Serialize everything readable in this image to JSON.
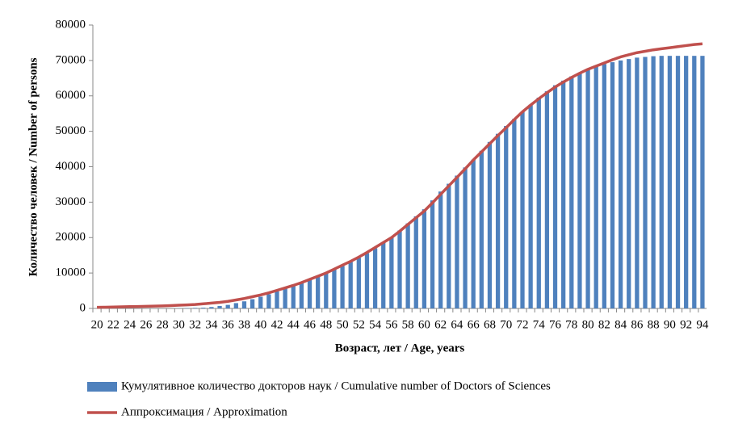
{
  "chart_data": {
    "type": "bar",
    "x_label": "Возраст, лет / Age, years",
    "y_label": "Количество человек / Number of persons",
    "categories": [
      "20",
      null,
      "22",
      null,
      "24",
      null,
      "26",
      null,
      "28",
      null,
      "30",
      null,
      "32",
      null,
      "34",
      null,
      "36",
      null,
      "38",
      null,
      "40",
      null,
      "42",
      null,
      "44",
      null,
      "46",
      null,
      "48",
      null,
      "50",
      null,
      "52",
      null,
      "54",
      null,
      "56",
      null,
      "58",
      null,
      "60",
      null,
      "62",
      null,
      "64",
      null,
      "66",
      null,
      "68",
      null,
      "70",
      null,
      "72",
      null,
      "74",
      null,
      "76",
      null,
      "78",
      null,
      "80",
      null,
      "82",
      null,
      "84",
      null,
      "86",
      null,
      "88",
      null,
      "90",
      null,
      "92",
      null,
      "94"
    ],
    "series": [
      {
        "name": "Кумулятивное количество докторов наук / Cumulative number of Doctors of Sciences",
        "type": "bar",
        "color": "#4f81bd",
        "values": [
          0,
          0,
          0,
          0,
          0,
          0,
          0,
          0,
          0,
          0,
          50,
          100,
          150,
          200,
          400,
          700,
          1000,
          1500,
          2000,
          2600,
          3300,
          4000,
          4800,
          5600,
          6500,
          7400,
          8300,
          9100,
          10000,
          11000,
          12000,
          13100,
          14300,
          15600,
          17000,
          18500,
          20000,
          22000,
          24000,
          26000,
          28000,
          30500,
          33000,
          35200,
          37500,
          39800,
          42000,
          44500,
          47000,
          49300,
          51500,
          53500,
          55500,
          57500,
          59500,
          61300,
          63000,
          64300,
          65500,
          66500,
          67500,
          68300,
          69000,
          69500,
          70000,
          70400,
          70800,
          71000,
          71200,
          71300,
          71300,
          71300,
          71300,
          71300,
          71300
        ]
      },
      {
        "name": "Аппроксимация / Approximation",
        "type": "line",
        "color": "#c0504d",
        "values": [
          300,
          350,
          400,
          450,
          500,
          550,
          600,
          650,
          700,
          800,
          900,
          1000,
          1100,
          1300,
          1500,
          1700,
          2000,
          2400,
          2800,
          3300,
          3800,
          4400,
          5100,
          5800,
          6500,
          7300,
          8200,
          9100,
          10000,
          11100,
          12200,
          13300,
          14500,
          15800,
          17200,
          18600,
          20000,
          21800,
          23700,
          25600,
          27500,
          29800,
          32200,
          34600,
          37000,
          39400,
          41900,
          44200,
          46500,
          48800,
          51000,
          53300,
          55500,
          57400,
          59200,
          60900,
          62500,
          63900,
          65200,
          66400,
          67500,
          68400,
          69300,
          70200,
          71000,
          71600,
          72200,
          72600,
          73000,
          73300,
          73600,
          73900,
          74200,
          74500,
          74700
        ]
      }
    ],
    "ylim": [
      0,
      80000
    ],
    "yticks": [
      0,
      10000,
      20000,
      30000,
      40000,
      50000,
      60000,
      70000,
      80000
    ],
    "grid": false
  }
}
